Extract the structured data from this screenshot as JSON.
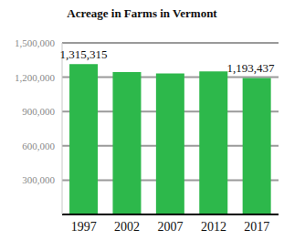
{
  "chart_data": {
    "type": "bar",
    "title": "Acreage in Farms in Vermont",
    "categories": [
      "1997",
      "2002",
      "2007",
      "2012",
      "2017"
    ],
    "values": [
      1315315,
      1245000,
      1233000,
      1251000,
      1193437
    ],
    "value_labels": [
      "1,315,315",
      null,
      null,
      null,
      "1,193,437"
    ],
    "color": "#2db84b",
    "ylim": [
      0,
      1500000
    ],
    "yticks": [
      {
        "value": 300000,
        "label": "300,000"
      },
      {
        "value": 600000,
        "label": "600,000"
      },
      {
        "value": 900000,
        "label": "900,000"
      },
      {
        "value": 1200000,
        "label": "1,200,000"
      },
      {
        "value": 1500000,
        "label": "1,500,000"
      }
    ],
    "grid": true
  }
}
